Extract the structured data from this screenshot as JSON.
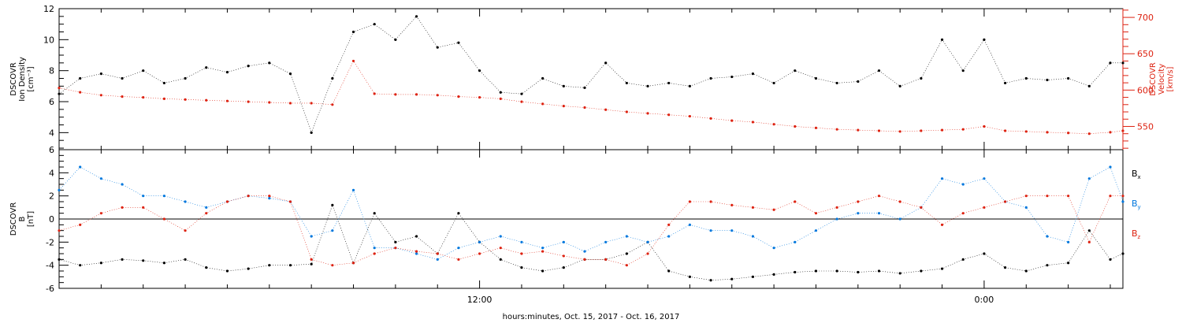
{
  "figure": {
    "xlabel": "hours:minutes, Oct. 15, 2017 - Oct. 16, 2017"
  },
  "colors": {
    "black": "#000000",
    "red": "#dd2211",
    "blue": "#0077dd"
  },
  "chart_data": [
    {
      "type": "scatter",
      "panel": "top",
      "ylabel": [
        "DSCOVR",
        "Ion Density",
        "[cm⁻³]"
      ],
      "ylabel_right": [
        "DSCOVR",
        "Velocity",
        "[km/s]"
      ],
      "ylim": [
        2.9,
        12
      ],
      "yticks": [
        "4",
        "6",
        "8",
        "10",
        "12"
      ],
      "ylim_right": [
        518,
        712
      ],
      "yticks_right": [
        "550",
        "600",
        "650",
        "700"
      ],
      "xlim_hours": [
        2,
        27.3
      ],
      "xticks": [
        {
          "hour": 12,
          "label": "12:00"
        },
        {
          "hour": 24,
          "label": "0:00"
        }
      ],
      "grid": false,
      "series": [
        {
          "axis": "left",
          "color": "#000000",
          "x": [
            2.0,
            2.5,
            3.0,
            3.5,
            4.0,
            4.5,
            5.0,
            5.5,
            6.0,
            6.5,
            7.0,
            7.5,
            8.0,
            8.5,
            9.0,
            9.5,
            10.0,
            10.5,
            11.0,
            11.5,
            12.0,
            12.5,
            13.0,
            13.5,
            14.0,
            14.5,
            15.0,
            15.5,
            16.0,
            16.5,
            17.0,
            17.5,
            18.0,
            18.5,
            19.0,
            19.5,
            20.0,
            20.5,
            21.0,
            21.5,
            22.0,
            22.5,
            23.0,
            23.5,
            24.0,
            24.5,
            25.0,
            25.5,
            26.0,
            26.5,
            27.0,
            27.3
          ],
          "y": [
            6.5,
            7.5,
            7.8,
            7.5,
            8.0,
            7.2,
            7.5,
            8.2,
            7.9,
            8.3,
            8.5,
            7.8,
            4.0,
            7.5,
            10.5,
            11.0,
            10.0,
            11.5,
            9.5,
            9.8,
            8.0,
            6.6,
            6.5,
            7.5,
            7.0,
            6.9,
            8.5,
            7.2,
            7.0,
            7.2,
            7.0,
            7.5,
            7.6,
            7.8,
            7.2,
            8.0,
            7.5,
            7.2,
            7.3,
            8.0,
            7.0,
            7.5,
            10.0,
            8.0,
            10.0,
            7.2,
            7.5,
            7.4,
            7.5,
            7.0,
            8.5,
            8.5
          ]
        },
        {
          "axis": "right",
          "color": "#dd2211",
          "x": [
            2.0,
            2.5,
            3.0,
            3.5,
            4.0,
            4.5,
            5.0,
            5.5,
            6.0,
            6.5,
            7.0,
            7.5,
            8.0,
            8.5,
            9.0,
            9.5,
            10.0,
            10.5,
            11.0,
            11.5,
            12.0,
            12.5,
            13.0,
            13.5,
            14.0,
            14.5,
            15.0,
            15.5,
            16.0,
            16.5,
            17.0,
            17.5,
            18.0,
            18.5,
            19.0,
            19.5,
            20.0,
            20.5,
            21.0,
            21.5,
            22.0,
            22.5,
            23.0,
            23.5,
            24.0,
            24.5,
            25.0,
            25.5,
            26.0,
            26.5,
            27.0,
            27.3
          ],
          "y": [
            603,
            597,
            593,
            591,
            590,
            588,
            587,
            586,
            585,
            584,
            583,
            582,
            582,
            580,
            640,
            595,
            594,
            594,
            593,
            591,
            590,
            588,
            584,
            581,
            578,
            576,
            573,
            570,
            568,
            566,
            564,
            561,
            558,
            556,
            553,
            550,
            548,
            546,
            545,
            544,
            543,
            544,
            545,
            546,
            550,
            544,
            543,
            542,
            541,
            540,
            542,
            544
          ]
        }
      ]
    },
    {
      "type": "scatter",
      "panel": "bottom",
      "ylabel": [
        "DSCOVR",
        "B",
        "[nT]"
      ],
      "ylim": [
        -6,
        6
      ],
      "yticks": [
        "-6",
        "-4",
        "-2",
        "0",
        "2",
        "4",
        "6"
      ],
      "xlim_hours": [
        2,
        27.3
      ],
      "xticks": [
        {
          "hour": 12,
          "label": "12:00"
        },
        {
          "hour": 24,
          "label": "0:00"
        }
      ],
      "zero_line": true,
      "legend_placement": "right",
      "series": [
        {
          "name": "B",
          "subscript": "x",
          "color": "#000000",
          "x": [
            2.0,
            2.5,
            3.0,
            3.5,
            4.0,
            4.5,
            5.0,
            5.5,
            6.0,
            6.5,
            7.0,
            7.5,
            8.0,
            8.5,
            9.0,
            9.5,
            10.0,
            10.5,
            11.0,
            11.5,
            12.0,
            12.5,
            13.0,
            13.5,
            14.0,
            14.5,
            15.0,
            15.5,
            16.0,
            16.5,
            17.0,
            17.5,
            18.0,
            18.5,
            19.0,
            19.5,
            20.0,
            20.5,
            21.0,
            21.5,
            22.0,
            22.5,
            23.0,
            23.5,
            24.0,
            24.5,
            25.0,
            25.5,
            26.0,
            26.5,
            27.0,
            27.3
          ],
          "y": [
            -3.5,
            -4.0,
            -3.8,
            -3.5,
            -3.6,
            -3.8,
            -3.5,
            -4.2,
            -4.5,
            -4.3,
            -4.0,
            -4.0,
            -3.9,
            1.2,
            -3.8,
            0.5,
            -2.0,
            -1.5,
            -3.0,
            0.5,
            -2.0,
            -3.5,
            -4.2,
            -4.5,
            -4.2,
            -3.5,
            -3.5,
            -3.0,
            -2.0,
            -4.5,
            -5.0,
            -5.3,
            -5.2,
            -5.0,
            -4.8,
            -4.6,
            -4.5,
            -4.5,
            -4.6,
            -4.5,
            -4.7,
            -4.5,
            -4.3,
            -3.5,
            -3.0,
            -4.2,
            -4.5,
            -4.0,
            -3.8,
            -1.0,
            -3.5,
            -3.0
          ]
        },
        {
          "name": "B",
          "subscript": "y",
          "color": "#0077dd",
          "x": [
            2.0,
            2.5,
            3.0,
            3.5,
            4.0,
            4.5,
            5.0,
            5.5,
            6.0,
            6.5,
            7.0,
            7.5,
            8.0,
            8.5,
            9.0,
            9.5,
            10.0,
            10.5,
            11.0,
            11.5,
            12.0,
            12.5,
            13.0,
            13.5,
            14.0,
            14.5,
            15.0,
            15.5,
            16.0,
            16.5,
            17.0,
            17.5,
            18.0,
            18.5,
            19.0,
            19.5,
            20.0,
            20.5,
            21.0,
            21.5,
            22.0,
            22.5,
            23.0,
            23.5,
            24.0,
            24.5,
            25.0,
            25.5,
            26.0,
            26.5,
            27.0,
            27.3
          ],
          "y": [
            2.5,
            4.5,
            3.5,
            3.0,
            2.0,
            2.0,
            1.5,
            1.0,
            1.5,
            2.0,
            1.8,
            1.5,
            -1.5,
            -1.0,
            2.5,
            -2.5,
            -2.5,
            -3.0,
            -3.5,
            -2.5,
            -2.0,
            -1.5,
            -2.0,
            -2.5,
            -2.0,
            -2.8,
            -2.0,
            -1.5,
            -2.0,
            -1.5,
            -0.5,
            -1.0,
            -1.0,
            -1.5,
            -2.5,
            -2.0,
            -1.0,
            0.0,
            0.5,
            0.5,
            0.0,
            1.0,
            3.5,
            3.0,
            3.5,
            1.5,
            1.0,
            -1.5,
            -2.0,
            3.5,
            4.5,
            1.5
          ]
        },
        {
          "name": "B",
          "subscript": "z",
          "color": "#dd2211",
          "x": [
            2.0,
            2.5,
            3.0,
            3.5,
            4.0,
            4.5,
            5.0,
            5.5,
            6.0,
            6.5,
            7.0,
            7.5,
            8.0,
            8.5,
            9.0,
            9.5,
            10.0,
            10.5,
            11.0,
            11.5,
            12.0,
            12.5,
            13.0,
            13.5,
            14.0,
            14.5,
            15.0,
            15.5,
            16.0,
            16.5,
            17.0,
            17.5,
            18.0,
            18.5,
            19.0,
            19.5,
            20.0,
            20.5,
            21.0,
            21.5,
            22.0,
            22.5,
            23.0,
            23.5,
            24.0,
            24.5,
            25.0,
            25.5,
            26.0,
            26.5,
            27.0,
            27.3
          ],
          "y": [
            -1.0,
            -0.5,
            0.5,
            1.0,
            1.0,
            0.0,
            -1.0,
            0.5,
            1.5,
            2.0,
            2.0,
            1.5,
            -3.5,
            -4.0,
            -3.8,
            -3.0,
            -2.5,
            -2.8,
            -3.0,
            -3.5,
            -3.0,
            -2.5,
            -3.0,
            -2.8,
            -3.2,
            -3.5,
            -3.5,
            -4.0,
            -3.0,
            -0.5,
            1.5,
            1.5,
            1.2,
            1.0,
            0.8,
            1.5,
            0.5,
            1.0,
            1.5,
            2.0,
            1.5,
            1.0,
            -0.5,
            0.5,
            1.0,
            1.5,
            2.0,
            2.0,
            2.0,
            -2.0,
            2.0,
            2.0
          ]
        }
      ]
    }
  ]
}
